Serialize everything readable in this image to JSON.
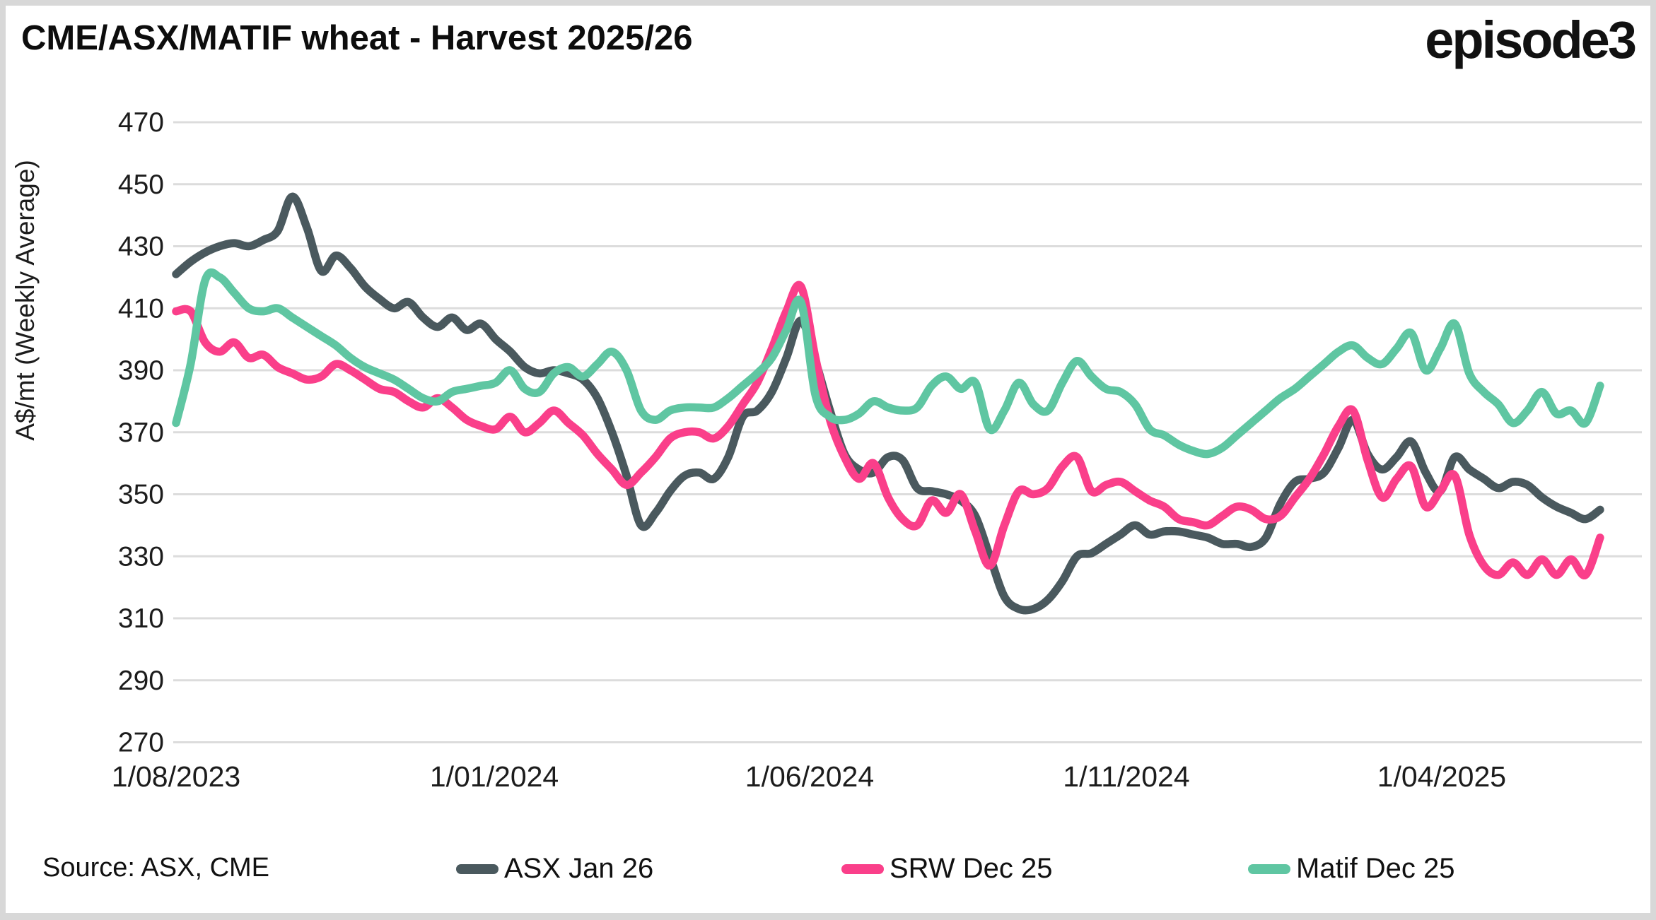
{
  "page": {
    "title": "CME/ASX/MATIF wheat - Harvest 2025/26",
    "logo_text": "episode3",
    "source_note": "Source: ASX, CME"
  },
  "colors": {
    "background": "#d8d8d8",
    "card": "#ffffff",
    "gridline": "#dcdcdc",
    "text": "#111111",
    "asx": "#4a595e",
    "srw": "#fa3f8a",
    "matif": "#5fc6a2"
  },
  "chart_data": {
    "type": "line",
    "title": "CME/ASX/MATIF wheat - Harvest 2025/26",
    "xlabel": "",
    "ylabel": "A$/mt (Weekly Average)",
    "ylim": [
      270,
      470
    ],
    "yticks": [
      270,
      290,
      310,
      330,
      350,
      370,
      390,
      410,
      430,
      450,
      470
    ],
    "grid": "horizontal-only",
    "legend_position": "bottom",
    "x_unit": "weekly averages, Aug 2023 - Jun 2025",
    "xtick_labels": [
      "1/08/2023",
      "1/01/2024",
      "1/06/2024",
      "1/11/2024",
      "1/04/2025"
    ],
    "xtick_weeks": [
      0,
      21.9,
      43.6,
      65.4,
      87.1
    ],
    "n_points": 99,
    "series": [
      {
        "name": "ASX Jan 26",
        "color": "#4a595e",
        "values": [
          421,
          425,
          428,
          430,
          431,
          430,
          432,
          435,
          446,
          436,
          422,
          427,
          423,
          417,
          413,
          410,
          412,
          407,
          404,
          407,
          403,
          405,
          400,
          396,
          391,
          389,
          390,
          389,
          387,
          381,
          370,
          356,
          340,
          344,
          351,
          356,
          357,
          355,
          362,
          375,
          377,
          383,
          394,
          406,
          393,
          377,
          363,
          358,
          357,
          362,
          361,
          352,
          351,
          350,
          348,
          343,
          330,
          317,
          313,
          313,
          316,
          322,
          330,
          331,
          334,
          337,
          340,
          337,
          338,
          338,
          337,
          336,
          334,
          334,
          333,
          336,
          347,
          354,
          355,
          357,
          365,
          374,
          363,
          358,
          362,
          367,
          357,
          351,
          362,
          358,
          355,
          352,
          354,
          353,
          349,
          346,
          344,
          342,
          345
        ]
      },
      {
        "name": "SRW Dec 25",
        "color": "#fa3f8a",
        "values": [
          409,
          409,
          399,
          396,
          399,
          394,
          395,
          391,
          389,
          387,
          388,
          392,
          390,
          387,
          384,
          383,
          380,
          378,
          381,
          378,
          374,
          372,
          371,
          375,
          370,
          373,
          377,
          373,
          369,
          363,
          358,
          353,
          357,
          362,
          368,
          370,
          370,
          368,
          372,
          379,
          386,
          397,
          409,
          417,
          394,
          374,
          362,
          355,
          360,
          349,
          342,
          340,
          348,
          344,
          350,
          338,
          327,
          340,
          351,
          350,
          352,
          359,
          362,
          351,
          353,
          354,
          351,
          348,
          346,
          342,
          341,
          340,
          343,
          346,
          345,
          342,
          343,
          349,
          355,
          363,
          372,
          377,
          361,
          349,
          355,
          359,
          346,
          351,
          356,
          337,
          327,
          324,
          328,
          324,
          329,
          324,
          329,
          324,
          336
        ]
      },
      {
        "name": "Matif Dec 25",
        "color": "#5fc6a2",
        "values": [
          373,
          392,
          419,
          420,
          415,
          410,
          409,
          410,
          407,
          404,
          401,
          398,
          394,
          391,
          389,
          387,
          384,
          381,
          380,
          383,
          384,
          385,
          386,
          390,
          384,
          383,
          389,
          391,
          388,
          392,
          396,
          390,
          377,
          374,
          377,
          378,
          378,
          378,
          381,
          385,
          389,
          394,
          403,
          412,
          382,
          375,
          374,
          376,
          380,
          378,
          377,
          378,
          385,
          388,
          384,
          386,
          371,
          377,
          386,
          379,
          377,
          386,
          393,
          388,
          384,
          383,
          379,
          371,
          369,
          366,
          364,
          363,
          365,
          369,
          373,
          377,
          381,
          384,
          388,
          392,
          396,
          398,
          394,
          392,
          397,
          402,
          390,
          397,
          405,
          389,
          383,
          379,
          373,
          377,
          383,
          376,
          377,
          373,
          385
        ]
      }
    ]
  }
}
